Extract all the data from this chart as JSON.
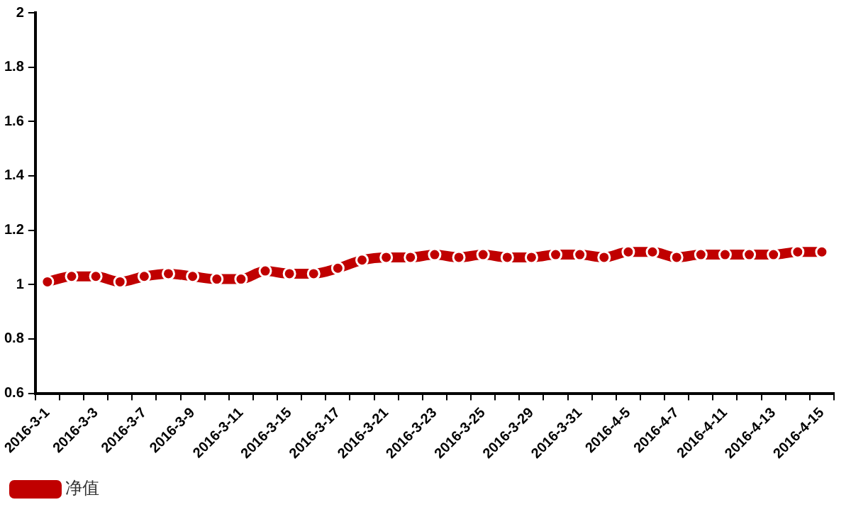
{
  "chart_data": {
    "type": "line",
    "categories": [
      "2016-3-1",
      null,
      "2016-3-3",
      null,
      "2016-3-7",
      null,
      "2016-3-9",
      null,
      "2016-3-11",
      null,
      "2016-3-15",
      null,
      "2016-3-17",
      null,
      "2016-3-21",
      null,
      "2016-3-23",
      null,
      "2016-3-25",
      null,
      "2016-3-29",
      null,
      "2016-3-31",
      null,
      "2016-4-5",
      null,
      "2016-4-7",
      null,
      "2016-4-11",
      null,
      "2016-4-13",
      null,
      "2016-4-15"
    ],
    "series": [
      {
        "name": "净值",
        "color": "#c00000",
        "values": [
          1.01,
          1.03,
          1.03,
          1.01,
          1.03,
          1.04,
          1.03,
          1.02,
          1.02,
          1.05,
          1.04,
          1.04,
          1.06,
          1.09,
          1.1,
          1.1,
          1.11,
          1.1,
          1.11,
          1.1,
          1.1,
          1.11,
          1.11,
          1.1,
          1.12,
          1.12,
          1.1,
          1.11,
          1.11,
          1.11,
          1.11,
          1.12,
          1.12
        ]
      }
    ],
    "ylim": [
      0.6,
      2
    ],
    "yticks": [
      0.6,
      0.8,
      1,
      1.2,
      1.4,
      1.6,
      1.8,
      2
    ],
    "grid": false,
    "legend": "bottom left",
    "marker": "circle",
    "line_style": "solid"
  }
}
